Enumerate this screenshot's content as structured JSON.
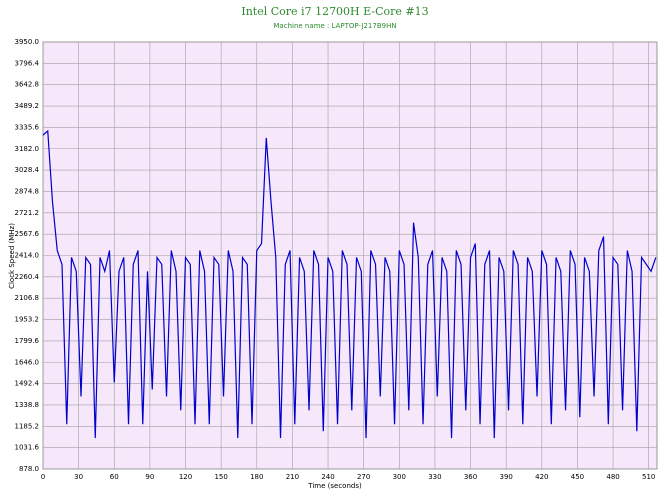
{
  "chart_data": {
    "type": "line",
    "title": "Intel Core i7 12700H E-Core #13",
    "subtitle": "Machine name : LAPTOP-J217B9HN",
    "x_label": "Time (seconds)",
    "y_label": "Clock Speed (MHz)",
    "xlim": [
      0,
      517
    ],
    "xticks": [
      0,
      30,
      60,
      90,
      120,
      150,
      180,
      210,
      240,
      270,
      300,
      330,
      360,
      390,
      420,
      450,
      480,
      510
    ],
    "ylim": [
      878,
      3950
    ],
    "yticks": [
      {
        "value": 878,
        "label": "878.0"
      },
      1031.6,
      1185.2,
      1338.8,
      1492.4,
      {
        "value": 1646,
        "label": "1646.0"
      },
      1799.6,
      1953.2,
      2106.8,
      2260.4,
      {
        "value": 2414,
        "label": "2414.0"
      },
      2567.6,
      2721.2,
      2874.8,
      3028.4,
      {
        "value": 3182,
        "label": "3182.0"
      },
      3335.6,
      3489.2,
      3642.8,
      3796.4,
      {
        "value": 3950,
        "label": "3950.0"
      }
    ],
    "grid": true,
    "background": "#f6e8fa",
    "x": [
      0,
      4,
      8,
      12,
      16,
      20,
      24,
      28,
      32,
      36,
      40,
      44,
      48,
      52,
      56,
      60,
      64,
      68,
      72,
      76,
      80,
      84,
      88,
      92,
      96,
      100,
      104,
      108,
      112,
      116,
      120,
      124,
      128,
      132,
      136,
      140,
      144,
      148,
      152,
      156,
      160,
      164,
      168,
      172,
      176,
      180,
      184,
      188,
      192,
      196,
      200,
      204,
      208,
      212,
      216,
      220,
      224,
      228,
      232,
      236,
      240,
      244,
      248,
      252,
      256,
      260,
      264,
      268,
      272,
      276,
      280,
      284,
      288,
      292,
      296,
      300,
      304,
      308,
      312,
      316,
      320,
      324,
      328,
      332,
      336,
      340,
      344,
      348,
      352,
      356,
      360,
      364,
      368,
      372,
      376,
      380,
      384,
      388,
      392,
      396,
      400,
      404,
      408,
      412,
      416,
      420,
      424,
      428,
      432,
      436,
      440,
      444,
      448,
      452,
      456,
      460,
      464,
      468,
      472,
      476,
      480,
      484,
      488,
      492,
      496,
      500,
      504,
      508,
      512,
      516
    ],
    "series": [
      {
        "color": "#0000cc",
        "values": [
          3280,
          3310,
          2800,
          2450,
          2350,
          1200,
          2400,
          2300,
          1400,
          2400,
          2350,
          1100,
          2400,
          2300,
          2450,
          1500,
          2300,
          2400,
          1200,
          2350,
          2450,
          1200,
          2300,
          1450,
          2400,
          2350,
          1400,
          2450,
          2300,
          1300,
          2400,
          2350,
          1200,
          2450,
          2300,
          1200,
          2400,
          2350,
          1400,
          2450,
          2300,
          1100,
          2400,
          2350,
          1200,
          2450,
          2500,
          3260,
          2800,
          2400,
          1100,
          2350,
          2450,
          1200,
          2400,
          2300,
          1300,
          2450,
          2350,
          1150,
          2400,
          2300,
          1200,
          2450,
          2350,
          1300,
          2400,
          2300,
          1100,
          2450,
          2350,
          1400,
          2400,
          2300,
          1200,
          2450,
          2350,
          1300,
          2650,
          2400,
          1200,
          2350,
          2450,
          1400,
          2400,
          2300,
          1100,
          2450,
          2350,
          1300,
          2400,
          2500,
          1200,
          2350,
          2450,
          1100,
          2400,
          2300,
          1300,
          2450,
          2350,
          1200,
          2400,
          2300,
          1400,
          2450,
          2350,
          1200,
          2400,
          2300,
          1300,
          2450,
          2350,
          1250,
          2400,
          2300,
          1400,
          2450,
          2550,
          1200,
          2400,
          2350,
          1300,
          2450,
          2300,
          1150,
          2400,
          2350,
          2300,
          2400
        ]
      }
    ]
  }
}
